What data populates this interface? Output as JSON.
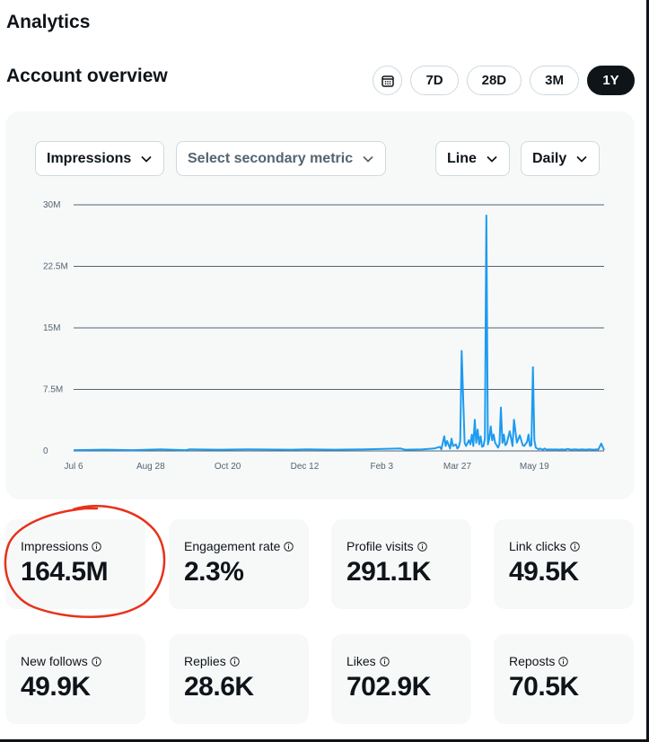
{
  "page": {
    "title": "Analytics",
    "subtitle": "Account overview"
  },
  "ranges": [
    {
      "label": "7D",
      "active": false
    },
    {
      "label": "28D",
      "active": false
    },
    {
      "label": "3M",
      "active": false
    },
    {
      "label": "1Y",
      "active": true
    }
  ],
  "icons": {
    "calendar": "calendar-icon",
    "chevron": "chevron-down-icon",
    "info": "info-icon"
  },
  "filters": {
    "primary_metric": "Impressions",
    "secondary_metric": "Select secondary metric",
    "chart_type": "Line",
    "granularity": "Daily"
  },
  "chart_data": {
    "type": "line",
    "title": "",
    "xlabel": "",
    "ylabel": "",
    "ylim": [
      0,
      30000000
    ],
    "y_ticks": [
      {
        "value": 0,
        "label": "0"
      },
      {
        "value": 7500000,
        "label": "7.5M"
      },
      {
        "value": 15000000,
        "label": "15M"
      },
      {
        "value": 22500000,
        "label": "22.5M"
      },
      {
        "value": 30000000,
        "label": "30M"
      }
    ],
    "x_ticks": [
      "Jul 6",
      "Aug 28",
      "Oct 20",
      "Dec 12",
      "Feb 3",
      "Mar 27",
      "May 19"
    ],
    "x_tick_days": [
      0,
      53,
      106,
      159,
      212,
      264,
      317
    ],
    "x_range_days": [
      0,
      365
    ],
    "grid": true,
    "line_color": "#1d9bf0",
    "series": [
      {
        "x_days": [
          0,
          20,
          40,
          60,
          77,
          80,
          100,
          120,
          150,
          160,
          180,
          200,
          225,
          228,
          240,
          248,
          252,
          253,
          255,
          256,
          257,
          259,
          260,
          261,
          263,
          264,
          265,
          266,
          267,
          269,
          270,
          272,
          273,
          274,
          275,
          276,
          277,
          278,
          279,
          280,
          281,
          282,
          283,
          284,
          285,
          286,
          287,
          288,
          289,
          290,
          292,
          293,
          294,
          295,
          296,
          297,
          298,
          300,
          302,
          303,
          305,
          307,
          309,
          310,
          312,
          313,
          314,
          315,
          316,
          317,
          318,
          319,
          320,
          321,
          322,
          323,
          324,
          325,
          326,
          327,
          328,
          329,
          330,
          331,
          332,
          333,
          334,
          336,
          338,
          340,
          342,
          345,
          348,
          350,
          352,
          355,
          358,
          360,
          361,
          363,
          365
        ],
        "values": [
          100000,
          150000,
          100000,
          200000,
          100000,
          200000,
          150000,
          200000,
          150000,
          200000,
          150000,
          200000,
          300000,
          150000,
          200000,
          300000,
          500000,
          200000,
          1800000,
          600000,
          1200000,
          300000,
          1500000,
          600000,
          800000,
          300000,
          500000,
          1200000,
          12200000,
          1000000,
          600000,
          1300000,
          800000,
          2000000,
          600000,
          3800000,
          1000000,
          2600000,
          800000,
          1800000,
          500000,
          600000,
          1500000,
          28700000,
          800000,
          1500000,
          3000000,
          1300000,
          2000000,
          1000000,
          400000,
          800000,
          5300000,
          1000000,
          2000000,
          700000,
          900000,
          2400000,
          600000,
          3800000,
          1000000,
          1900000,
          700000,
          600000,
          1100000,
          2000000,
          600000,
          700000,
          10200000,
          1300000,
          400000,
          300000,
          200000,
          300000,
          200000,
          150000,
          300000,
          200000,
          150000,
          200000,
          150000,
          200000,
          150000,
          200000,
          150000,
          200000,
          150000,
          200000,
          150000,
          250000,
          150000,
          200000,
          150000,
          200000,
          150000,
          200000,
          150000,
          200000,
          150000,
          900000,
          100000
        ]
      }
    ]
  },
  "stats": [
    {
      "label": "Impressions",
      "value": "164.5M"
    },
    {
      "label": "Engagement rate",
      "value": "2.3%"
    },
    {
      "label": "Profile visits",
      "value": "291.1K"
    },
    {
      "label": "Link clicks",
      "value": "49.5K"
    },
    {
      "label": "New follows",
      "value": "49.9K"
    },
    {
      "label": "Replies",
      "value": "28.6K"
    },
    {
      "label": "Likes",
      "value": "702.9K"
    },
    {
      "label": "Reposts",
      "value": "70.5K"
    }
  ],
  "annotation": {
    "color": "#e8311a"
  }
}
